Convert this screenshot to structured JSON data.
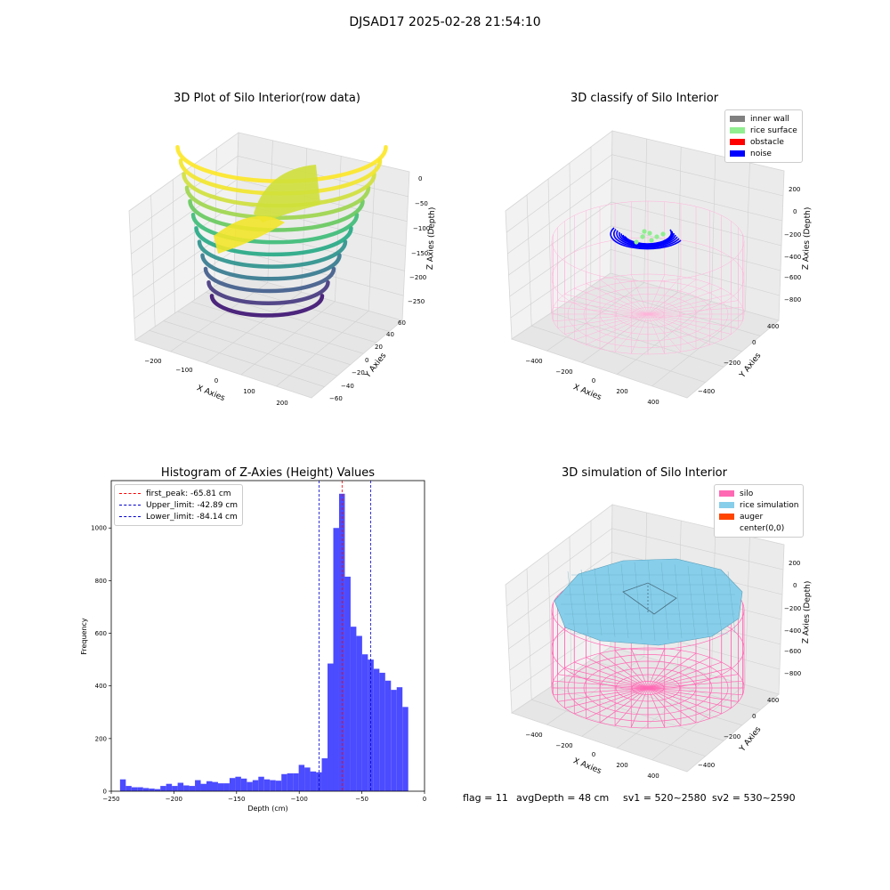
{
  "figure_title": "DJSAD17 2025-02-28 21:54:10",
  "footer": {
    "flag": "flag = 11",
    "avg_depth": "avgDepth = 48 cm",
    "sv1": "sv1 = 520~2580",
    "sv2": "sv2 = 530~2590"
  },
  "colors": {
    "histogram_bar": "#4b4bff",
    "first_peak_line": "#ff0000",
    "limit_lines": "#0000cc",
    "inner_wall": "#808080",
    "rice_surface": "#90ee90",
    "obstacle": "#ff0000",
    "noise": "#0000ff",
    "silo": "#ff69b4",
    "rice_simulation": "#87ceeb",
    "auger": "#ff4500"
  },
  "chart_data": [
    {
      "type": "scatter",
      "title": "3D Plot of Silo Interior(row data)",
      "xlabel": "X Axies",
      "ylabel": "Y Axies",
      "zlabel": "Z Axies (Depth)",
      "x_ticks": [
        "−200",
        "−100",
        "0",
        "100",
        "200"
      ],
      "y_ticks": [
        "−60",
        "−40",
        "−20",
        "0",
        "20",
        "40",
        "60"
      ],
      "z_ticks": [
        "0",
        "−50",
        "−100",
        "−150",
        "−200",
        "−250"
      ],
      "xlim": [
        -250,
        250
      ],
      "ylim": [
        -65,
        65
      ],
      "zlim": [
        -260,
        0
      ],
      "colormap": "viridis"
    },
    {
      "type": "scatter",
      "title": "3D classify of Silo Interior",
      "xlabel": "X Axies",
      "ylabel": "Y Axies",
      "zlabel": "Z Axies (Depth)",
      "x_ticks": [
        "−400",
        "−200",
        "0",
        "200",
        "400"
      ],
      "y_ticks": [
        "−400",
        "−200",
        "0",
        "200",
        "400"
      ],
      "z_ticks": [
        "200",
        "0",
        "−200",
        "−400",
        "−600",
        "−800"
      ],
      "legend": [
        "inner wall",
        "rice surface",
        "obstacle",
        "noise"
      ],
      "legend_position": "top-right"
    },
    {
      "type": "bar",
      "title": "Histogram of Z-Axies (Height) Values",
      "xlabel": "Depth (cm)",
      "ylabel": "Frequency",
      "xlim": [
        -250,
        0
      ],
      "ylim": [
        0,
        1180
      ],
      "x_ticks": [
        "−250",
        "−200",
        "−150",
        "−100",
        "−50",
        "0"
      ],
      "y_ticks": [
        "0",
        "200",
        "400",
        "600",
        "800",
        "1000"
      ],
      "bin_start": -243,
      "bin_width": 4.6,
      "values": [
        45,
        20,
        15,
        15,
        12,
        10,
        8,
        20,
        28,
        20,
        32,
        22,
        20,
        42,
        28,
        38,
        35,
        30,
        30,
        50,
        55,
        48,
        35,
        42,
        55,
        45,
        42,
        40,
        65,
        68,
        68,
        100,
        90,
        75,
        72,
        125,
        485,
        1000,
        1130,
        815,
        625,
        590,
        520,
        500,
        465,
        450,
        420,
        385,
        395,
        320
      ],
      "vlines": [
        {
          "label": "first_peak: -65.81 cm",
          "x": -65.81
        },
        {
          "label": "Upper_limit: -42.89 cm",
          "x": -42.89
        },
        {
          "label": "Lower_limit: -84.14 cm",
          "x": -84.14
        }
      ],
      "legend_position": "top-left"
    },
    {
      "type": "area",
      "title": "3D simulation of Silo Interior",
      "xlabel": "X Axies",
      "ylabel": "Y Axies",
      "zlabel": "Z Axies (Depth)",
      "x_ticks": [
        "−400",
        "−200",
        "0",
        "200",
        "400"
      ],
      "y_ticks": [
        "−400",
        "−200",
        "0",
        "200",
        "400"
      ],
      "z_ticks": [
        "200",
        "0",
        "−200",
        "−400",
        "−600",
        "−800"
      ],
      "legend": [
        "silo",
        "rice simulation",
        "auger",
        "center(0,0)"
      ],
      "legend_position": "top-right"
    }
  ]
}
